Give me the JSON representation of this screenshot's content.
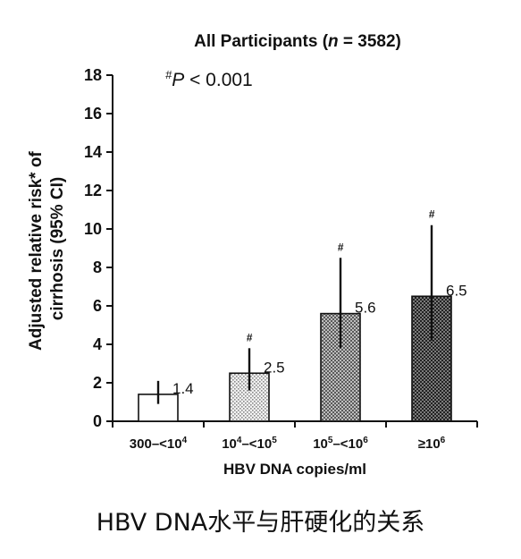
{
  "chart_data": {
    "type": "bar",
    "title_prefix": "All Participants (",
    "title_n": "n",
    "title_suffix": " = 3582)",
    "significance": {
      "symbol": "#",
      "p_letter": "P",
      "text": " < 0.001"
    },
    "ylabel_line1": "Adjusted relative risk* of",
    "ylabel_line2": "cirrhosis (95% CI)",
    "xlabel": "HBV DNA copies/ml",
    "ylim": [
      0,
      18
    ],
    "yticks": [
      0,
      2,
      4,
      6,
      8,
      10,
      12,
      14,
      16,
      18
    ],
    "categories": [
      {
        "pre": "300–<10",
        "sup1": "4",
        "mid": "",
        "sup2": ""
      },
      {
        "pre": "10",
        "sup1": "4",
        "mid": "–<10",
        "sup2": "5"
      },
      {
        "pre": "10",
        "sup1": "5",
        "mid": "–<10",
        "sup2": "6"
      },
      {
        "pre": "≥10",
        "sup1": "6",
        "mid": "",
        "sup2": ""
      }
    ],
    "values": [
      1.4,
      2.5,
      5.6,
      6.5
    ],
    "value_labels": [
      "1.4",
      "2.5",
      "5.6",
      "6.5"
    ],
    "ci_lower": [
      0.9,
      1.6,
      3.8,
      4.2
    ],
    "ci_upper": [
      2.1,
      3.8,
      8.5,
      10.2
    ],
    "significant": [
      false,
      true,
      true,
      true
    ],
    "fills": [
      "white",
      "light-dots",
      "medium-dots",
      "dark-dots"
    ]
  },
  "caption": "HBV DNA水平与肝硬化的关系"
}
